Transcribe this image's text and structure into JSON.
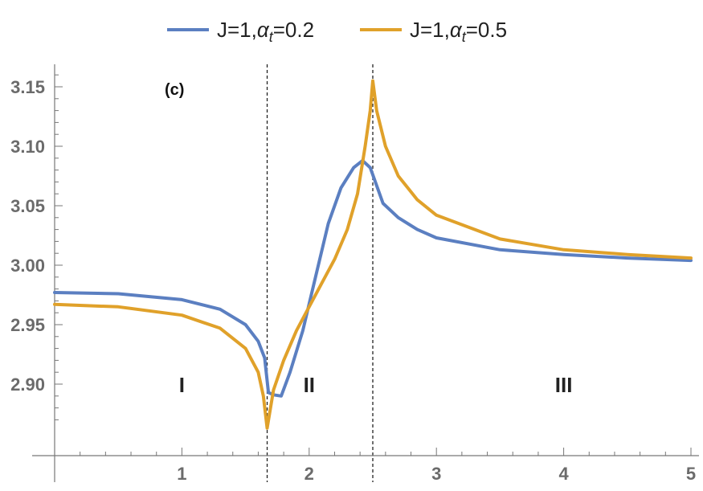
{
  "chart_data": {
    "type": "line",
    "title": "",
    "xlabel": "",
    "ylabel": "",
    "xlim": [
      0,
      5
    ],
    "ylim": [
      2.86,
      3.165
    ],
    "xticks": [
      1,
      2,
      3,
      4,
      5
    ],
    "xtick_labels": [
      "1",
      "2",
      "3",
      "4",
      "5"
    ],
    "yticks": [
      2.9,
      2.95,
      3.0,
      3.05,
      3.1,
      3.15
    ],
    "ytick_labels": [
      "2.90",
      "2.95",
      "3.00",
      "3.05",
      "3.10",
      "3.15"
    ],
    "grid": false,
    "legend_position": "top-center",
    "panel_label": "(c)",
    "region_labels": [
      {
        "text": "I",
        "x": 1.0,
        "y": 2.9
      },
      {
        "text": "II",
        "x": 2.0,
        "y": 2.9
      },
      {
        "text": "III",
        "x": 4.0,
        "y": 2.9
      }
    ],
    "vlines": [
      1.67,
      2.5
    ],
    "series": [
      {
        "name_prefix": "J=1,",
        "name_alpha": "α",
        "name_sub": "t",
        "name_suffix": "=0.2",
        "color": "#5b7fc1",
        "x": [
          0,
          0.5,
          1.0,
          1.3,
          1.5,
          1.6,
          1.65,
          1.68,
          1.72,
          1.78,
          1.85,
          1.95,
          2.05,
          2.15,
          2.25,
          2.35,
          2.42,
          2.48,
          2.52,
          2.58,
          2.7,
          2.85,
          3.0,
          3.5,
          4.0,
          4.5,
          5.0
        ],
        "y": [
          2.977,
          2.976,
          2.971,
          2.963,
          2.95,
          2.936,
          2.922,
          2.893,
          2.891,
          2.89,
          2.91,
          2.945,
          2.99,
          3.035,
          3.065,
          3.082,
          3.088,
          3.082,
          3.07,
          3.052,
          3.04,
          3.03,
          3.023,
          3.013,
          3.009,
          3.006,
          3.004
        ]
      },
      {
        "name_prefix": "J=1,",
        "name_alpha": "α",
        "name_sub": "t",
        "name_suffix": "=0.5",
        "color": "#e0a12a",
        "x": [
          0,
          0.5,
          1.0,
          1.3,
          1.5,
          1.6,
          1.64,
          1.67,
          1.72,
          1.8,
          1.9,
          2.0,
          2.1,
          2.2,
          2.3,
          2.38,
          2.44,
          2.48,
          2.5,
          2.53,
          2.6,
          2.7,
          2.85,
          3.0,
          3.5,
          4.0,
          4.5,
          5.0
        ],
        "y": [
          2.967,
          2.965,
          2.958,
          2.947,
          2.93,
          2.91,
          2.89,
          2.863,
          2.895,
          2.92,
          2.945,
          2.965,
          2.985,
          3.005,
          3.03,
          3.06,
          3.1,
          3.13,
          3.155,
          3.13,
          3.1,
          3.075,
          3.055,
          3.042,
          3.022,
          3.013,
          3.009,
          3.006
        ]
      }
    ]
  }
}
